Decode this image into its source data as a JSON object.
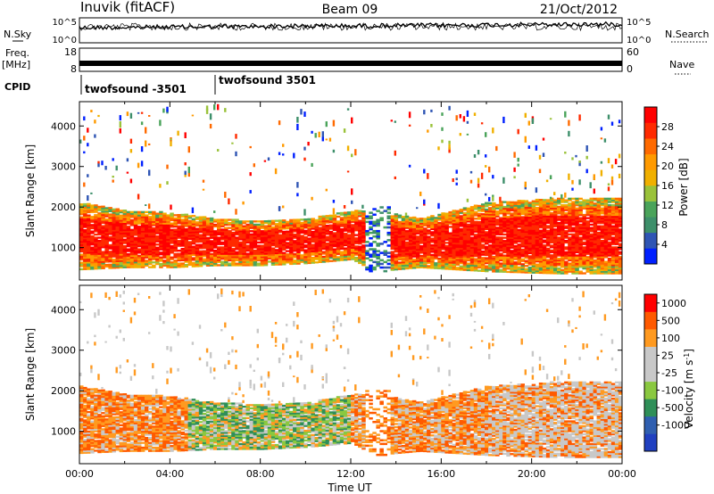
{
  "header": {
    "station": "Inuvik (fitACF)",
    "beam": "Beam 09",
    "date": "21/Oct/2012"
  },
  "top_panels": {
    "nsky": {
      "label": "N.Sky",
      "right_label": "N.Search",
      "left_ticks": [
        "10^5",
        "10^0"
      ],
      "right_ticks": [
        "10^5",
        "10^0"
      ]
    },
    "freq": {
      "label_line1": "Freq.",
      "label_line2": "[MHz]",
      "right_label": "Nave",
      "left_ticks": [
        "18",
        "8"
      ],
      "right_ticks": [
        "60",
        "0"
      ]
    },
    "cpid": {
      "label": "CPID",
      "segments": [
        {
          "name": "twofsound -3501",
          "start_hour": 0
        },
        {
          "name": "twofsound 3501",
          "start_hour": 6
        }
      ]
    }
  },
  "colors": {
    "power_scale": [
      "#0020ff",
      "#2f55b4",
      "#3d8f6a",
      "#4aa35a",
      "#9ac23a",
      "#f0b000",
      "#ff9a00",
      "#ff6a00",
      "#ff2a00",
      "#ff0000"
    ],
    "velocity_scale": [
      "#ff0000",
      "#ff5a00",
      "#ff9a20",
      "#c8c8c8",
      "#c8c8c8",
      "#8ac840",
      "#2f8f58",
      "#2f5fb0",
      "#2040c0"
    ],
    "ground_scatter": "#c8c8c8"
  },
  "chart_data": [
    {
      "type": "heatmap",
      "name": "power",
      "xlabel": "",
      "ylabel": "Slant Range [km]",
      "xlim": [
        0,
        24
      ],
      "ylim": [
        200,
        4600
      ],
      "yticks": [
        1000,
        2000,
        3000,
        4000
      ],
      "colorbar": {
        "label": "Power [dB]",
        "range": [
          0,
          32
        ],
        "ticks": [
          "28",
          "24",
          "20",
          "16",
          "12",
          "8",
          "4"
        ]
      },
      "main_band": [
        {
          "hour": 0,
          "low": 450,
          "high": 2100
        },
        {
          "hour": 2,
          "low": 500,
          "high": 1900
        },
        {
          "hour": 4,
          "low": 500,
          "high": 1850
        },
        {
          "hour": 6,
          "low": 550,
          "high": 1700
        },
        {
          "hour": 8,
          "low": 550,
          "high": 1650
        },
        {
          "hour": 10,
          "low": 600,
          "high": 1700
        },
        {
          "hour": 12,
          "low": 700,
          "high": 1900
        },
        {
          "hour": 13,
          "low": 400,
          "high": 1900
        },
        {
          "hour": 15,
          "low": 500,
          "high": 1700
        },
        {
          "hour": 18,
          "low": 400,
          "high": 2100
        },
        {
          "hour": 21,
          "low": 350,
          "high": 2200
        },
        {
          "hour": 24,
          "low": 350,
          "high": 2200
        }
      ]
    },
    {
      "type": "heatmap",
      "name": "velocity",
      "xlabel": "Time UT",
      "ylabel": "Slant Range [km]",
      "xlim": [
        0,
        24
      ],
      "ylim": [
        200,
        4600
      ],
      "yticks": [
        1000,
        2000,
        3000,
        4000
      ],
      "xticks": [
        "00:00",
        "04:00",
        "08:00",
        "12:00",
        "16:00",
        "20:00",
        "00:00"
      ],
      "colorbar": {
        "label": "Velocity [m s^-1]",
        "ticks": [
          "1000",
          "500",
          "100",
          "25",
          "-25",
          "-100",
          "-500",
          "-1000"
        ]
      }
    }
  ]
}
